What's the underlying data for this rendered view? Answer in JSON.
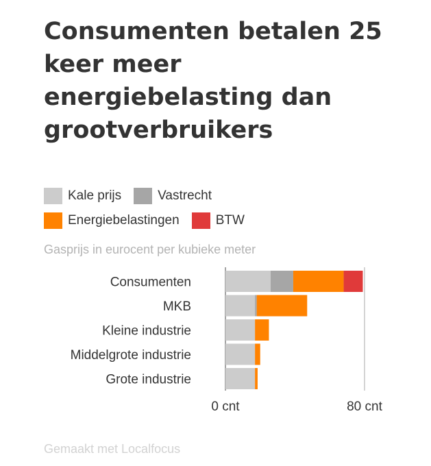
{
  "title": "Consumenten betalen 25 keer meer energiebelasting dan grootverbruikers",
  "subtitle": "Gasprijs in eurocent per kubieke meter",
  "footer": "Gemaakt met Localfocus",
  "legend": [
    {
      "label": "Kale prijs",
      "color": "#cccccc"
    },
    {
      "label": "Vastrecht",
      "color": "#a6a6a6"
    },
    {
      "label": "Energiebelastingen",
      "color": "#ff8200"
    },
    {
      "label": "BTW",
      "color": "#e03a3a"
    }
  ],
  "chart_data": {
    "type": "bar",
    "orientation": "horizontal",
    "stacked": true,
    "categories": [
      "Consumenten",
      "MKB",
      "Kleine industrie",
      "Middelgrote industrie",
      "Grote industrie"
    ],
    "series": [
      {
        "name": "Kale prijs",
        "color": "#cccccc",
        "values": [
          26,
          17,
          17,
          17,
          17
        ]
      },
      {
        "name": "Vastrecht",
        "color": "#a6a6a6",
        "values": [
          13,
          1,
          0,
          0,
          0
        ]
      },
      {
        "name": "Energiebelastingen",
        "color": "#ff8200",
        "values": [
          29,
          29,
          8,
          3,
          1.5
        ]
      },
      {
        "name": "BTW",
        "color": "#e03a3a",
        "values": [
          11,
          0,
          0,
          0,
          0
        ]
      }
    ],
    "xlim": [
      0,
      80
    ],
    "x_ticks": [
      0,
      80
    ],
    "x_tick_labels": [
      "0 cnt",
      "80 cnt"
    ],
    "unit": "eurocent per kubieke meter",
    "gridlines": "vertical at 0 and 80",
    "legend_position": "top"
  }
}
